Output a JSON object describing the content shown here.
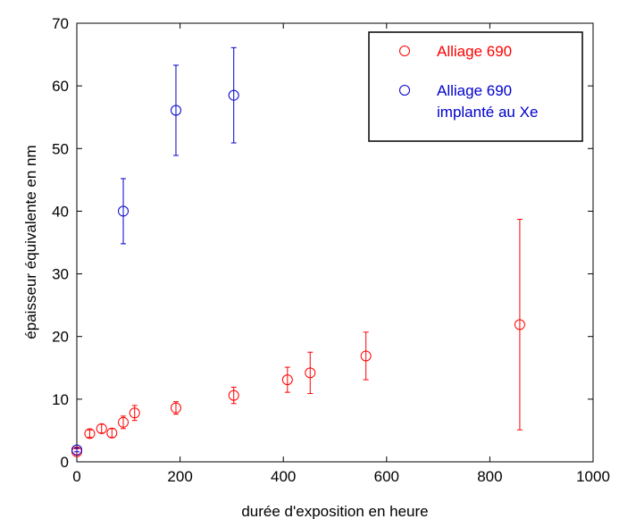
{
  "chart_data": {
    "type": "scatter",
    "title": "",
    "xlabel": "durée d'exposition en heure",
    "ylabel": "épaisseur équivalente en nm",
    "xlim": [
      0,
      1000
    ],
    "ylim": [
      0,
      70
    ],
    "x_ticks": [
      0,
      200,
      400,
      600,
      800,
      1000
    ],
    "y_ticks": [
      0,
      10,
      20,
      30,
      40,
      50,
      60,
      70
    ],
    "grid": false,
    "legend_position": "top-right",
    "series": [
      {
        "name": "Alliage 690",
        "legend_lines": [
          "Alliage 690"
        ],
        "color": "#ff0000",
        "marker": "open-circle",
        "points": [
          {
            "x": 0,
            "y": 1.6,
            "err": 0.5
          },
          {
            "x": 25,
            "y": 4.5,
            "err": 0.6
          },
          {
            "x": 48,
            "y": 5.3,
            "err": 0.7
          },
          {
            "x": 68,
            "y": 4.6,
            "err": 0.7
          },
          {
            "x": 90,
            "y": 6.3,
            "err": 1.0
          },
          {
            "x": 112,
            "y": 7.8,
            "err": 1.2
          },
          {
            "x": 192,
            "y": 8.6,
            "err": 1.0
          },
          {
            "x": 304,
            "y": 10.6,
            "err": 1.3
          },
          {
            "x": 408,
            "y": 13.1,
            "err": 2.0
          },
          {
            "x": 452,
            "y": 14.2,
            "err": 3.3
          },
          {
            "x": 560,
            "y": 16.9,
            "err": 3.8
          },
          {
            "x": 858,
            "y": 21.9,
            "err": 16.8
          }
        ]
      },
      {
        "name": "Alliage 690 implanté au Xe",
        "legend_lines": [
          "Alliage 690",
          "implanté au Xe"
        ],
        "color": "#0000cc",
        "marker": "open-circle",
        "points": [
          {
            "x": 0,
            "y": 1.9,
            "err": 0.3
          },
          {
            "x": 90,
            "y": 40.0,
            "err": 5.2
          },
          {
            "x": 192,
            "y": 56.1,
            "err": 7.2
          },
          {
            "x": 304,
            "y": 58.5,
            "err": 7.6
          }
        ]
      }
    ]
  }
}
